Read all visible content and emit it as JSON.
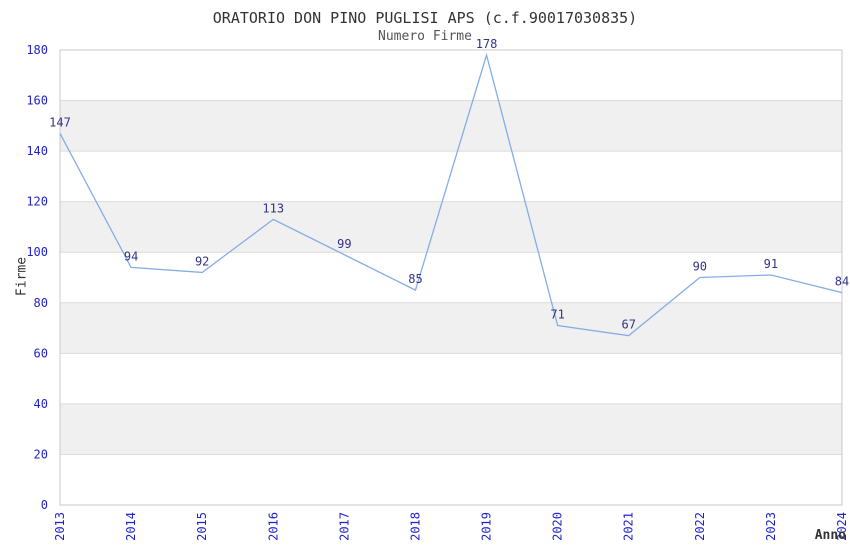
{
  "chart_data": {
    "type": "line",
    "title": "ORATORIO DON PINO PUGLISI APS (c.f.90017030835)",
    "subtitle": "Numero Firme",
    "xlabel": "Anno",
    "ylabel": "Firme",
    "categories": [
      "2013",
      "2014",
      "2015",
      "2016",
      "2017",
      "2018",
      "2019",
      "2020",
      "2021",
      "2022",
      "2023",
      "2024"
    ],
    "series": [
      {
        "name": "Numero Firme",
        "values": [
          147,
          94,
          92,
          113,
          99,
          85,
          178,
          71,
          67,
          90,
          91,
          84
        ]
      }
    ],
    "ylim": [
      0,
      180
    ],
    "ytick_step": 20,
    "grid": "horizontal-gridlines-with-alternating-bands",
    "legend": "none",
    "data_labels_shown": true,
    "colors": {
      "line": "#85ade6",
      "tick_label": "#2222cc",
      "data_label": "#333388",
      "band": "#f0f0f0",
      "gridline": "#dcdcdc",
      "plot_border": "#c8c8c8",
      "title": "#333333",
      "subtitle": "#555555",
      "axis_title": "#333333",
      "background": "#ffffff"
    }
  }
}
